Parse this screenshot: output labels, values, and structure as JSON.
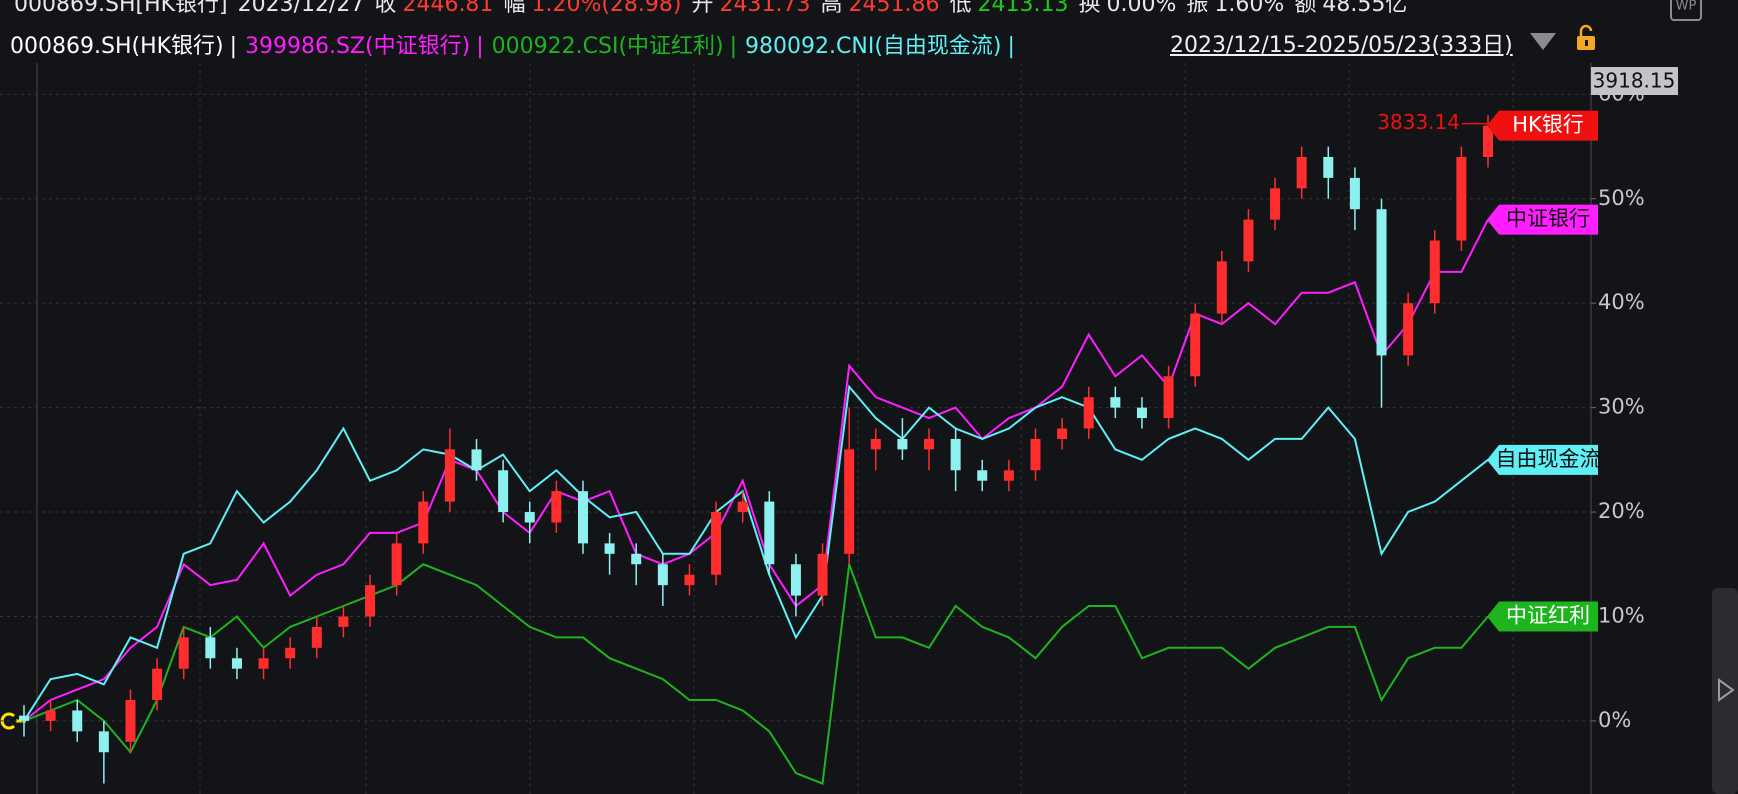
{
  "header": {
    "code": "000869.SH[HK银行]",
    "date": "2023/12/27",
    "fields": [
      {
        "label": "收",
        "value": "2446.81",
        "color": "#ff3b30"
      },
      {
        "label": "幅",
        "value": "1.20%(28.98)",
        "color": "#ff3b30"
      },
      {
        "label": "开",
        "value": "2431.73",
        "color": "#ff3b30"
      },
      {
        "label": "高",
        "value": "2451.86",
        "color": "#ff3b30"
      },
      {
        "label": "低",
        "value": "2413.13",
        "color": "#1ec81e"
      },
      {
        "label": "换",
        "value": "0.00%",
        "color": "#e8e8e8"
      },
      {
        "label": "振",
        "value": "1.60%",
        "color": "#e8e8e8"
      },
      {
        "label": "额",
        "value": "48.55亿",
        "color": "#e8e8e8"
      }
    ]
  },
  "toolbar": {
    "date_range": "2023/12/15-2025/05/23(333日)",
    "icon_label": "WP"
  },
  "chart_data": {
    "type": "candlestick",
    "legend_separator": "|",
    "price_label": "3833.14",
    "top_price_label": "3918.15",
    "ylim": [
      -7,
      63
    ],
    "yticks": [
      {
        "value": 0,
        "label": "0%"
      },
      {
        "value": 10,
        "label": "10%"
      },
      {
        "value": 20,
        "label": "20%"
      },
      {
        "value": 30,
        "label": "30%"
      },
      {
        "value": 40,
        "label": "40%"
      },
      {
        "value": 50,
        "label": "50%"
      },
      {
        "value": 60,
        "label": "60%"
      }
    ],
    "grid": true,
    "series": [
      {
        "name": "000869.SH(HK银行)",
        "tag": "HK银行",
        "color": "#ffffff",
        "tag_color": "#f01010",
        "tag_text_color": "#ffffff",
        "up_color": "#ff2d2d",
        "down_color": "#8ff0f0",
        "open": [
          0.5,
          0,
          1,
          -1,
          -2,
          2,
          5,
          8,
          6,
          5,
          6,
          7,
          9,
          10,
          13,
          17,
          21,
          26,
          24,
          20,
          19,
          22,
          17,
          16,
          15,
          13,
          14,
          20,
          21,
          15,
          12,
          16,
          26,
          27,
          26,
          27,
          24,
          23,
          24,
          27,
          28,
          31,
          30,
          29,
          33,
          39,
          44,
          48,
          51,
          54,
          52,
          49,
          35,
          40,
          46,
          54
        ],
        "high": [
          1.5,
          2,
          2,
          0,
          3,
          6,
          9,
          9,
          7,
          7,
          8,
          10,
          11,
          14,
          18,
          22,
          28,
          27,
          25,
          21,
          23,
          23,
          18,
          17,
          16,
          15,
          21,
          22,
          22,
          16,
          17,
          30,
          28,
          29,
          28,
          28,
          25,
          25,
          28,
          29,
          32,
          32,
          31,
          34,
          40,
          45,
          49,
          52,
          55,
          55,
          53,
          50,
          41,
          47,
          55,
          58
        ],
        "low": [
          -1.5,
          -1,
          -2,
          -6,
          -3,
          1,
          4,
          5,
          4,
          4,
          5,
          6,
          8,
          9,
          12,
          16,
          20,
          23,
          19,
          17,
          18,
          16,
          14,
          13,
          11,
          12,
          13,
          19,
          14,
          10,
          11,
          15,
          24,
          25,
          24,
          22,
          22,
          22,
          23,
          26,
          27,
          29,
          28,
          28,
          32,
          38,
          43,
          47,
          50,
          50,
          47,
          30,
          34,
          39,
          45,
          53
        ],
        "close": [
          0,
          1,
          -1,
          -3,
          2,
          5,
          8,
          6,
          5,
          6,
          7,
          9,
          10,
          13,
          17,
          21,
          26,
          24,
          20,
          19,
          22,
          17,
          16,
          15,
          13,
          14,
          20,
          21,
          15,
          12,
          16,
          26,
          27,
          26,
          27,
          24,
          23,
          24,
          27,
          28,
          31,
          30,
          29,
          33,
          39,
          44,
          48,
          51,
          54,
          52,
          49,
          35,
          40,
          46,
          54,
          57
        ]
      },
      {
        "name": "399986.SZ(中证银行)",
        "tag": "中证银行",
        "type": "line",
        "color": "#ff1eff",
        "tag_color": "#ff1eff",
        "tag_text_color": "#111111",
        "values": [
          0,
          2,
          3,
          4,
          7,
          9,
          15,
          13,
          13.5,
          17,
          12,
          14,
          15,
          18,
          18,
          19,
          25,
          24,
          20,
          18,
          22,
          21,
          22,
          16,
          15,
          16,
          18,
          23,
          15,
          11,
          13,
          34,
          31,
          30,
          29,
          30,
          27,
          29,
          30,
          32,
          37,
          33,
          35,
          32,
          39,
          38,
          40,
          38,
          41,
          41,
          42,
          35,
          38,
          43,
          43,
          48
        ]
      },
      {
        "name": "000922.CSI(中证红利)",
        "tag": "中证红利",
        "type": "line",
        "color": "#1eb41e",
        "tag_color": "#1eb41e",
        "tag_text_color": "#ffffff",
        "values": [
          0,
          1,
          2,
          0,
          -3,
          2,
          9,
          8,
          10,
          7,
          9,
          10,
          11,
          12,
          13,
          15,
          14,
          13,
          11,
          9,
          8,
          8,
          6,
          5,
          4,
          2,
          2,
          1,
          -1,
          -5,
          -6,
          15,
          8,
          8,
          7,
          11,
          9,
          8,
          6,
          9,
          11,
          11,
          6,
          7,
          7,
          7,
          5,
          7,
          8,
          9,
          9,
          2,
          6,
          7,
          7,
          10
        ]
      },
      {
        "name": "980092.CNI(自由现金流)",
        "tag": "自由现金流",
        "type": "line",
        "color": "#5ef0f5",
        "tag_color": "#5ef0f5",
        "tag_text_color": "#111111",
        "values": [
          0,
          4,
          4.5,
          3.5,
          8,
          7,
          16,
          17,
          22,
          19,
          21,
          24,
          28,
          23,
          24,
          26,
          25.5,
          24,
          25.5,
          22,
          24,
          21.5,
          19.5,
          20,
          16,
          16,
          20,
          22,
          14,
          8,
          12,
          32,
          29,
          27,
          30,
          28,
          27,
          28,
          30,
          31,
          30,
          26,
          25,
          27,
          28,
          27,
          25,
          27,
          27,
          30,
          27,
          16,
          20,
          21,
          23,
          25
        ]
      }
    ]
  }
}
